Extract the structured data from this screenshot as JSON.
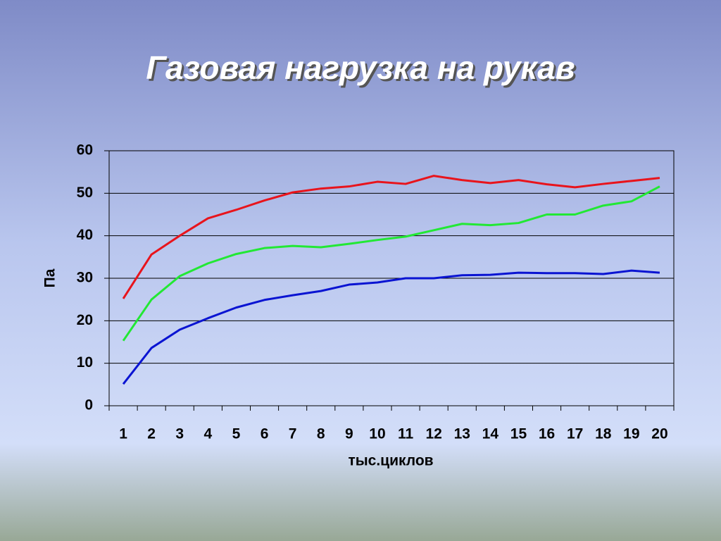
{
  "chart_data": {
    "type": "line",
    "title": "Газовая нагрузка на рукав",
    "x_label": "тыс.циклов",
    "y_label": "Па",
    "categories": [
      "1",
      "2",
      "3",
      "4",
      "5",
      "6",
      "7",
      "8",
      "9",
      "10",
      "11",
      "12",
      "13",
      "14",
      "15",
      "16",
      "17",
      "18",
      "19",
      "20"
    ],
    "series": [
      {
        "color": "#e8141c",
        "values": [
          25.2,
          35.6,
          40,
          44.1,
          46.1,
          48.3,
          50.2,
          51.1,
          51.6,
          52.7,
          52.2,
          54.1,
          53.1,
          52.4,
          53.1,
          52.1,
          51.4,
          52.2,
          52.9,
          53.6
        ]
      },
      {
        "color": "#22e834",
        "values": [
          15.3,
          25,
          30.5,
          33.5,
          35.7,
          37.1,
          37.6,
          37.3,
          38.1,
          39,
          39.8,
          41.3,
          42.8,
          42.5,
          43,
          45,
          45,
          47.1,
          48.1,
          51.6
        ]
      },
      {
        "color": "#0a14d2",
        "values": [
          5.1,
          13.6,
          17.9,
          20.6,
          23.1,
          24.9,
          26,
          27,
          28.5,
          29,
          30,
          30,
          30.7,
          30.8,
          31.3,
          31.2,
          31.2,
          31,
          31.8,
          31.3
        ]
      }
    ],
    "ylim": [
      0,
      60
    ],
    "yticks": [
      0,
      10,
      20,
      30,
      40,
      50,
      60
    ],
    "grid": true
  }
}
